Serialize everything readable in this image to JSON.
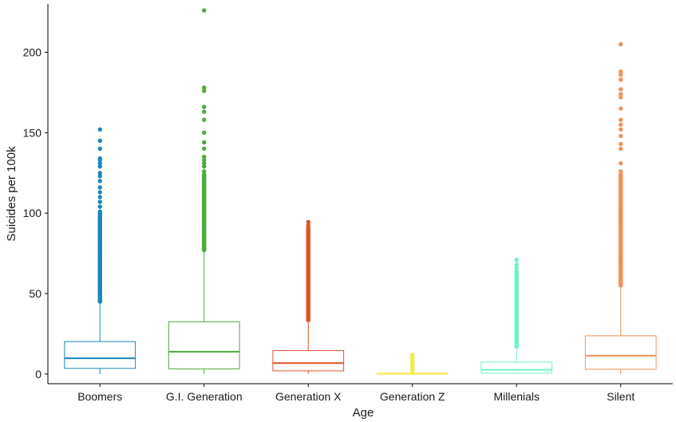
{
  "chart_data": {
    "type": "box",
    "xlabel": "Age",
    "ylabel": "Suicides per 100k",
    "ylim": [
      -6,
      230
    ],
    "yticks": [
      0,
      50,
      100,
      150,
      200
    ],
    "grid": false,
    "legend": "none",
    "categories": [
      "Boomers",
      "G.I. Generation",
      "Generation X",
      "Generation Z",
      "Millenials",
      "Silent"
    ],
    "boxes": [
      {
        "name": "Boomers",
        "color": "#1b87bb",
        "q1": 3.5,
        "median": 9.8,
        "q3": 20.2,
        "whisker_low": 0,
        "whisker_high": 45,
        "outliers": {
          "dense_from": 45,
          "dense_to": 100,
          "sparse": [
            101,
            104,
            107,
            110,
            113,
            116,
            120,
            123,
            125,
            129,
            131,
            133,
            134,
            140,
            145,
            152
          ]
        }
      },
      {
        "name": "G.I. Generation",
        "color": "#4dab3b",
        "q1": 3.2,
        "median": 13.9,
        "q3": 32.5,
        "whisker_low": 0,
        "whisker_high": 77,
        "outliers": {
          "dense_from": 77,
          "dense_to": 124,
          "sparse": [
            126,
            129,
            131,
            133,
            135,
            140,
            144,
            150,
            158,
            163,
            166,
            176,
            178,
            226
          ]
        }
      },
      {
        "name": "Generation X",
        "color": "#e0532a",
        "q1": 2,
        "median": 6.8,
        "q3": 14.6,
        "whisker_low": 0,
        "whisker_high": 33.5,
        "outliers": {
          "dense_from": 33.5,
          "dense_to": 91,
          "sparse": [
            92.5,
            94.5
          ]
        }
      },
      {
        "name": "Generation Z",
        "color": "#f5ea4f",
        "q1": 0,
        "median": 0.2,
        "q3": 0.6,
        "whisker_low": 0,
        "whisker_high": 1.5,
        "outliers": {
          "dense_from": 1.5,
          "dense_to": 10,
          "sparse": [
            11,
            12
          ]
        }
      },
      {
        "name": "Millenials",
        "color": "#6ef2c7",
        "q1": 0.6,
        "median": 2.6,
        "q3": 7.4,
        "whisker_low": 0,
        "whisker_high": 17,
        "outliers": {
          "dense_from": 17,
          "dense_to": 64,
          "sparse": [
            66,
            68,
            71
          ]
        }
      },
      {
        "name": "Silent",
        "color": "#f39157",
        "q1": 3,
        "median": 11.4,
        "q3": 23.8,
        "whisker_low": 0,
        "whisker_high": 55,
        "outliers": {
          "dense_from": 55,
          "dense_to": 124,
          "sparse": [
            126,
            131,
            140,
            143,
            148,
            152,
            155,
            158,
            165,
            172,
            174,
            177,
            183,
            186,
            188,
            205
          ]
        }
      }
    ]
  }
}
